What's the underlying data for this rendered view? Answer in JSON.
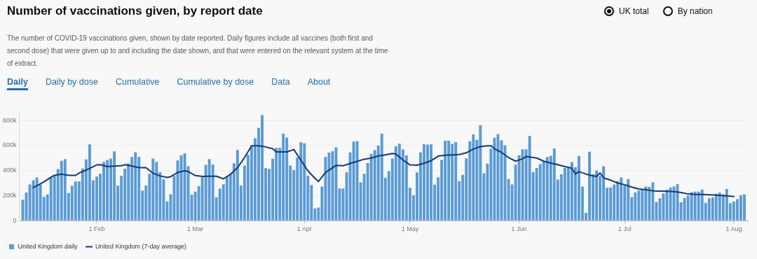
{
  "chart_data": {
    "type": "bar",
    "title": "Number of vaccinations given, by report date",
    "subtitle": "The number of COVID-19 vaccinations given, shown by date reported. Daily figures include all vaccines (both first and second dose) that were given up to and including the date shown, and that were entered on the relevant system at the time of extract.",
    "annotations": [
      "UK total",
      "By nation",
      "Daily",
      "Daily by dose",
      "Cumulative",
      "Cumulative by dose",
      "Data",
      "About"
    ],
    "x": [
      "--01-11",
      "--01-12",
      "--01-13",
      "--01-14",
      "--01-15",
      "--01-16",
      "--01-17",
      "--01-18",
      "--01-19",
      "--01-20",
      "--01-21",
      "--01-22",
      "--01-23",
      "--01-24",
      "--01-25",
      "--01-26",
      "--01-27",
      "--01-28",
      "--01-29",
      "--01-30",
      "--01-31",
      "--02-01",
      "--02-02",
      "--02-03",
      "--02-04",
      "--02-05",
      "--02-06",
      "--02-07",
      "--02-08",
      "--02-09",
      "--02-10",
      "--02-11",
      "--02-12",
      "--02-13",
      "--02-14",
      "--02-15",
      "--02-16",
      "--02-17",
      "--02-18",
      "--02-19",
      "--02-20",
      "--02-21",
      "--02-22",
      "--02-23",
      "--02-24",
      "--02-25",
      "--02-26",
      "--02-27",
      "--02-28",
      "--03-01",
      "--03-02",
      "--03-03",
      "--03-04",
      "--03-05",
      "--03-06",
      "--03-07",
      "--03-08",
      "--03-09",
      "--03-10",
      "--03-11",
      "--03-12",
      "--03-13",
      "--03-14",
      "--03-15",
      "--03-16",
      "--03-17",
      "--03-18",
      "--03-19",
      "--03-20",
      "--03-21",
      "--03-22",
      "--03-23",
      "--03-24",
      "--03-25",
      "--03-26",
      "--03-27",
      "--03-28",
      "--03-29",
      "--03-30",
      "--03-31",
      "--04-01",
      "--04-02",
      "--04-03",
      "--04-04",
      "--04-05",
      "--04-06",
      "--04-07",
      "--04-08",
      "--04-09",
      "--04-10",
      "--04-11",
      "--04-12",
      "--04-13",
      "--04-14",
      "--04-15",
      "--04-16",
      "--04-17",
      "--04-18",
      "--04-19",
      "--04-20",
      "--04-21",
      "--04-22",
      "--04-23",
      "--04-24",
      "--04-25",
      "--04-26",
      "--04-27",
      "--04-28",
      "--04-29",
      "--04-30",
      "--05-01",
      "--05-02",
      "--05-03",
      "--05-04",
      "--05-05",
      "--05-06",
      "--05-07",
      "--05-08",
      "--05-09",
      "--05-10",
      "--05-11",
      "--05-12",
      "--05-13",
      "--05-14",
      "--05-15",
      "--05-16",
      "--05-17",
      "--05-18",
      "--05-19",
      "--05-20",
      "--05-21",
      "--05-22",
      "--05-23",
      "--05-24",
      "--05-25",
      "--05-26",
      "--05-27",
      "--05-28",
      "--05-29",
      "--05-30",
      "--05-31",
      "--06-01",
      "--06-02",
      "--06-03",
      "--06-04",
      "--06-05",
      "--06-06",
      "--06-07",
      "--06-08",
      "--06-09",
      "--06-10",
      "--06-11",
      "--06-12",
      "--06-13",
      "--06-14",
      "--06-15",
      "--06-16",
      "--06-17",
      "--06-18",
      "--06-19",
      "--06-20",
      "--06-21",
      "--06-22",
      "--06-23",
      "--06-24",
      "--06-25",
      "--06-26",
      "--06-27",
      "--06-28",
      "--06-29",
      "--06-30",
      "--07-01",
      "--07-02",
      "--07-03",
      "--07-04",
      "--07-05",
      "--07-06",
      "--07-07",
      "--07-08",
      "--07-09",
      "--07-10",
      "--07-11",
      "--07-12",
      "--07-13",
      "--07-14",
      "--07-15",
      "--07-16",
      "--07-17",
      "--07-18",
      "--07-19",
      "--07-20",
      "--07-21",
      "--07-22",
      "--07-23",
      "--07-24",
      "--07-25",
      "--07-26",
      "--07-27",
      "--07-28",
      "--07-29",
      "--07-30",
      "--07-31",
      "--08-01",
      "--08-02",
      "--08-03",
      "--08-04"
    ],
    "series": [
      {
        "name": "United Kingdom daily",
        "color": "#5b9bd5",
        "values": [
          168000,
          225000,
          289000,
          323000,
          345000,
          290000,
          190000,
          210000,
          345000,
          365000,
          412000,
          478000,
          492000,
          220000,
          280000,
          313000,
          313000,
          417000,
          489000,
          609000,
          322000,
          352000,
          375000,
          470000,
          485000,
          496000,
          553000,
          280000,
          357000,
          415000,
          458000,
          509000,
          547000,
          509000,
          240000,
          281000,
          375000,
          496000,
          470000,
          387000,
          330000,
          153000,
          211000,
          357000,
          481000,
          521000,
          538000,
          434000,
          206000,
          232000,
          275000,
          347000,
          445000,
          492000,
          449000,
          187000,
          255000,
          291000,
          357000,
          375000,
          458000,
          564000,
          281000,
          440000,
          526000,
          600000,
          658000,
          740000,
          842000,
          419000,
          413000,
          494000,
          581000,
          581000,
          694000,
          664000,
          440000,
          404000,
          504000,
          626000,
          617000,
          357000,
          285000,
          98000,
          105000,
          272000,
          508000,
          544000,
          555000,
          585000,
          257000,
          257000,
          387000,
          545000,
          632000,
          636000,
          306000,
          374000,
          459000,
          534000,
          564000,
          600000,
          696000,
          342000,
          396000,
          496000,
          594000,
          615000,
          568000,
          521000,
          262000,
          202000,
          385000,
          545000,
          611000,
          608000,
          609000,
          287000,
          347000,
          485000,
          638000,
          638000,
          613000,
          628000,
          315000,
          366000,
          498000,
          634000,
          689000,
          645000,
          762000,
          379000,
          455000,
          574000,
          662000,
          691000,
          642000,
          602000,
          332000,
          289000,
          447000,
          523000,
          570000,
          570000,
          677000,
          387000,
          421000,
          451000,
          477000,
          509000,
          517000,
          575000,
          328000,
          370000,
          421000,
          428000,
          468000,
          428000,
          517000,
          272000,
          62000,
          551000,
          372000,
          400000,
          357000,
          434000,
          262000,
          266000,
          289000,
          315000,
          345000,
          281000,
          332000,
          189000,
          225000,
          240000,
          251000,
          272000,
          270000,
          306000,
          149000,
          179000,
          217000,
          247000,
          264000,
          272000,
          292000,
          147000,
          181000,
          200000,
          228000,
          232000,
          232000,
          249000,
          143000,
          179000,
          185000,
          215000,
          223000,
          209000,
          253000,
          140000,
          153000,
          172000,
          202000,
          209000
        ]
      },
      {
        "name": "United Kingdom (7-day average)",
        "type": "line",
        "color": "#12397a",
        "x": [
          "--01-14",
          "--01-17",
          "--01-19",
          "--01-20",
          "--01-22",
          "--01-24",
          "--01-26",
          "--01-27",
          "--01-29",
          "--01-30",
          "--02-01",
          "--02-02",
          "--02-04",
          "--02-06",
          "--02-08",
          "--02-09",
          "--02-11",
          "--02-13",
          "--02-15",
          "--02-17",
          "--02-19",
          "--02-21",
          "--02-22",
          "--02-24",
          "--02-26",
          "--02-27",
          "--03-01",
          "--03-03",
          "--03-05",
          "--03-07",
          "--03-09",
          "--03-11",
          "--03-13",
          "--03-15",
          "--03-17",
          "--03-19",
          "--03-21",
          "--03-23",
          "--03-24",
          "--03-27",
          "--03-29",
          "--03-31",
          "--04-02",
          "--04-04",
          "--04-05",
          "--04-07",
          "--04-09",
          "--04-10",
          "--04-12",
          "--04-14",
          "--04-16",
          "--04-18",
          "--04-20",
          "--04-22",
          "--04-24",
          "--04-26",
          "--04-27",
          "--04-29",
          "--05-01",
          "--05-03",
          "--05-05",
          "--05-07",
          "--05-09",
          "--05-11",
          "--05-15",
          "--05-17",
          "--05-19",
          "--05-21",
          "--05-23",
          "--05-24",
          "--05-25",
          "--05-27",
          "--05-29",
          "--05-31",
          "--06-02",
          "--06-03",
          "--06-06",
          "--06-08",
          "--06-10",
          "--06-12",
          "--06-14",
          "--06-16",
          "--06-17",
          "--06-18",
          "--06-20",
          "--06-22",
          "--06-23",
          "--06-24",
          "--06-25",
          "--06-27",
          "--06-29",
          "--07-01",
          "--07-03",
          "--07-05",
          "--07-07",
          "--07-09",
          "--07-11",
          "--07-13",
          "--07-15",
          "--07-17",
          "--07-19",
          "--07-21",
          "--07-23",
          "--07-25",
          "--07-27",
          "--07-29",
          "--07-31",
          "--08-01"
        ],
        "values": [
          264000,
          309000,
          347000,
          362000,
          372000,
          362000,
          362000,
          381000,
          404000,
          417000,
          445000,
          447000,
          432000,
          436000,
          438000,
          447000,
          436000,
          423000,
          423000,
          379000,
          357000,
          345000,
          351000,
          385000,
          398000,
          392000,
          360000,
          353000,
          355000,
          355000,
          334000,
          370000,
          423000,
          504000,
          598000,
          598000,
          589000,
          574000,
          549000,
          549000,
          568000,
          483000,
          398000,
          338000,
          313000,
          385000,
          423000,
          442000,
          438000,
          457000,
          474000,
          491000,
          500000,
          517000,
          525000,
          536000,
          532000,
          485000,
          445000,
          443000,
          458000,
          479000,
          515000,
          523000,
          528000,
          542000,
          572000,
          591000,
          598000,
          598000,
          574000,
          545000,
          504000,
          475000,
          494000,
          513000,
          500000,
          475000,
          460000,
          447000,
          432000,
          419000,
          372000,
          392000,
          372000,
          357000,
          353000,
          381000,
          342000,
          323000,
          300000,
          287000,
          268000,
          253000,
          247000,
          238000,
          236000,
          234000,
          232000,
          225000,
          213000,
          209000,
          209000,
          206000,
          204000,
          200000,
          196000,
          192000
        ]
      }
    ],
    "xlim": [
      "--01-10",
      "--08-05"
    ],
    "xticks": [
      {
        "value": "--02-01",
        "label": "1 Feb"
      },
      {
        "value": "--03-01",
        "label": "1 Mar"
      },
      {
        "value": "--04-01",
        "label": "1 Apr"
      },
      {
        "value": "--05-01",
        "label": "1 May"
      },
      {
        "value": "--06-01",
        "label": "1 Jun"
      },
      {
        "value": "--07-01",
        "label": "1 Jul"
      },
      {
        "value": "--08-01",
        "label": "1 Aug"
      }
    ],
    "ylim": [
      0,
      860000
    ],
    "yticks": [
      0,
      {
        "value": 200000,
        "label": "200k"
      },
      {
        "value": 400000,
        "label": "400k"
      },
      {
        "value": 600000,
        "label": "600k"
      },
      {
        "value": 800000,
        "label": "800k"
      }
    ],
    "grid": "y",
    "legend": "bottom left"
  }
}
